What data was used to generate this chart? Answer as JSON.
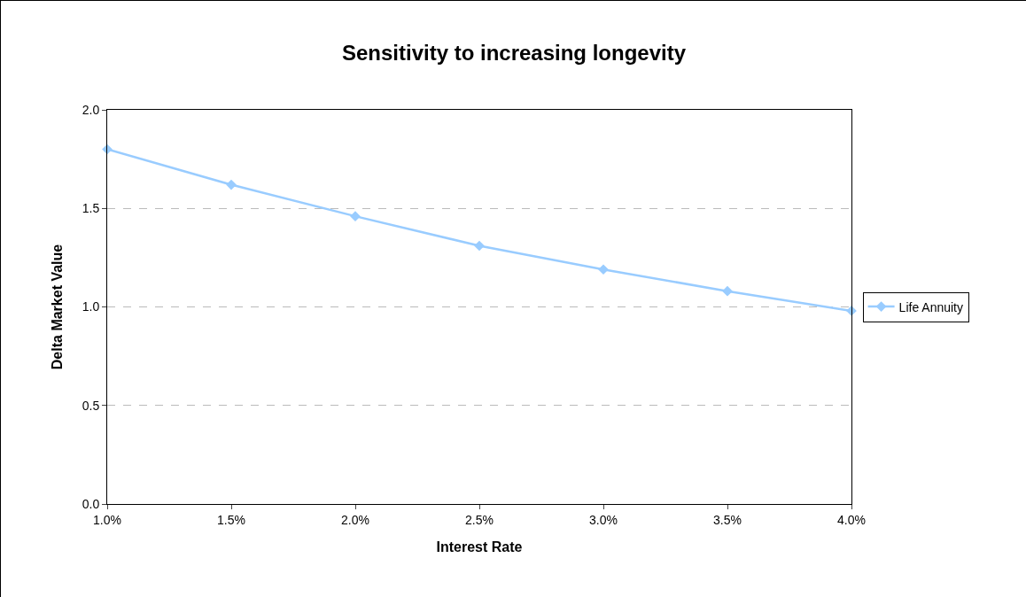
{
  "chart_data": {
    "type": "line",
    "title": "Sensitivity to increasing longevity",
    "xlabel": "Interest Rate",
    "ylabel": "Delta Market Value",
    "x": [
      1.0,
      1.5,
      2.0,
      2.5,
      3.0,
      3.5,
      4.0
    ],
    "series": [
      {
        "name": "Life Annuity",
        "color": "#99ccff",
        "values": [
          1.8,
          1.62,
          1.46,
          1.31,
          1.19,
          1.08,
          0.98
        ]
      }
    ],
    "xlim": [
      1.0,
      4.0
    ],
    "xticks": [
      {
        "value": 1.0,
        "label": "1.0%"
      },
      {
        "value": 1.5,
        "label": "1.5%"
      },
      {
        "value": 2.0,
        "label": "2.0%"
      },
      {
        "value": 2.5,
        "label": "2.5%"
      },
      {
        "value": 3.0,
        "label": "3.0%"
      },
      {
        "value": 3.5,
        "label": "3.5%"
      },
      {
        "value": 4.0,
        "label": "4.0%"
      }
    ],
    "ylim": [
      0,
      2.0
    ],
    "yticks": [
      {
        "value": 0,
        "label": "0.0"
      },
      {
        "value": 0.5,
        "label": "0.5"
      },
      {
        "value": 1.0,
        "label": "1.0"
      },
      {
        "value": 1.5,
        "label": "1.5"
      },
      {
        "value": 2.0,
        "label": "2.0"
      }
    ],
    "grid": "y",
    "legend": "right",
    "marker": "diamond",
    "line_style": "solid"
  }
}
